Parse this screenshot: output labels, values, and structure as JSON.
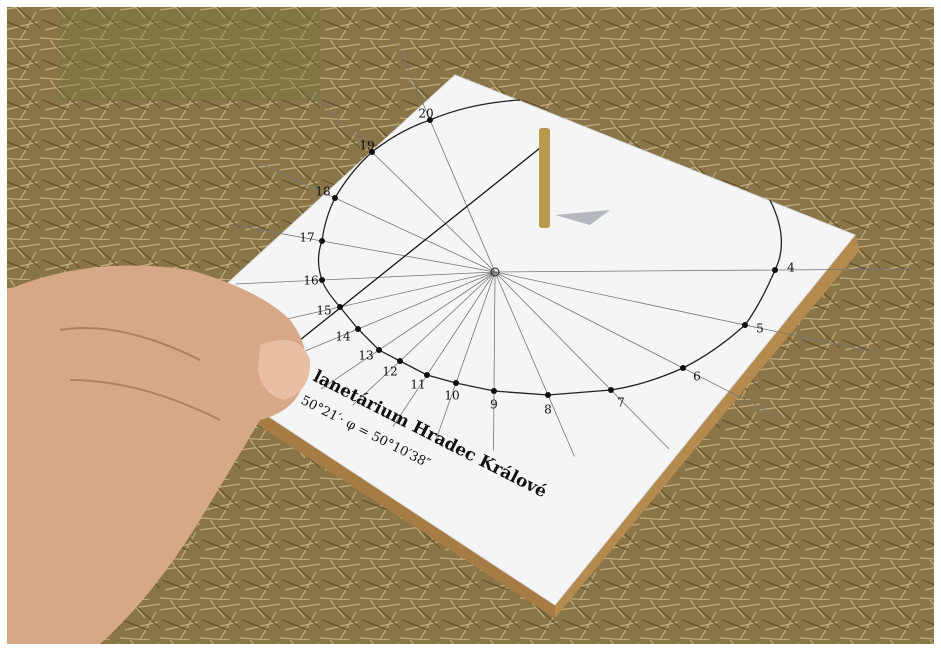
{
  "hour_labels": [
    "4",
    "5",
    "6",
    "7",
    "8",
    "9",
    "10",
    "11",
    "12",
    "13",
    "14",
    "15",
    "16",
    "17",
    "18",
    "19",
    "20"
  ],
  "caption": {
    "title": "lanetárium Hradec Králové",
    "coordinates": "50°21′· φ = 50°10′38″"
  }
}
